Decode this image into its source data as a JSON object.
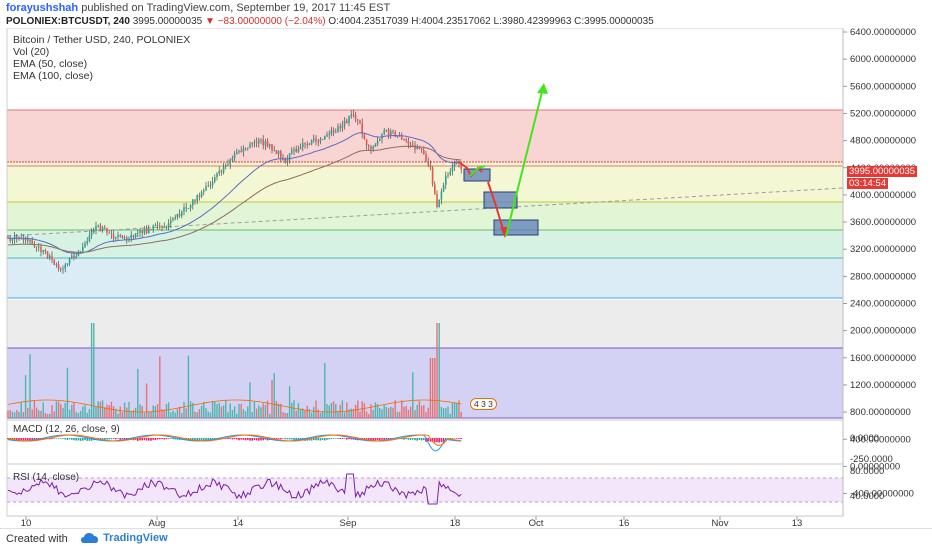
{
  "header": {
    "author": "forayushshah",
    "published_text": "published on TradingView.com, September 19, 2017 11:45 EST",
    "symbol": "POLONIEX:BTCUSDT, 240",
    "price": "3995.00000035",
    "change": "−83.00000000 (−2.04%)",
    "open": "O:4004.23517039",
    "high": "H:4004.23517062",
    "low": "L:3980.42399963",
    "close": "C:3995.00000035"
  },
  "legend": {
    "title": "Bitcoin / Tether USD, 240, POLONIEX",
    "vol": "Vol (20)",
    "ema50": "EMA (50, close)",
    "ema100": "EMA (100, close)"
  },
  "macd_label": "MACD (12, 26, close, 9)",
  "rsi_label": "RSI (14, close)",
  "price_badge": "3995.00000035",
  "countdown_badge": "03:14:54",
  "alert_badge": "4 3 3",
  "colors": {
    "up": "#26a69a",
    "down": "#ef5350",
    "ema50": "#5c6bc0",
    "ema100": "#8d6e63",
    "arrow_down": "#e53935",
    "arrow_up": "#43e51c",
    "box": "#5c7cba"
  },
  "price_axis": [
    "6400.00000000",
    "6000.00000000",
    "5600.00000000",
    "5200.00000000",
    "4800.00000000",
    "4400.00000000",
    "4000.00000000",
    "3600.00000000",
    "3200.00000000",
    "2800.00000000",
    "2400.00000000",
    "2000.00000000",
    "1600.00000000",
    "1200.00000000",
    "800.00000000",
    "400.00000000",
    "0.00000000",
    "-400.00000000"
  ],
  "macd_axis": [
    "0.0000",
    "-250.0000"
  ],
  "rsi_axis": [
    "80.0000",
    "40.0000"
  ],
  "time_axis": [
    "10",
    "Aug",
    "14",
    "Sep",
    "18",
    "Oct",
    "16",
    "Nov",
    "13"
  ],
  "footer": {
    "created": "Created with",
    "brand": "TradingView"
  }
}
